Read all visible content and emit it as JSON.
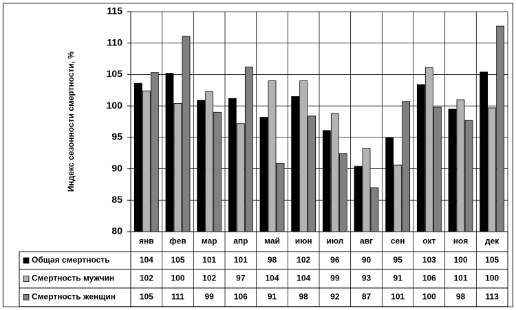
{
  "chart_data": {
    "type": "bar",
    "y_axis_label": "Индекс сезонности смертности, %",
    "categories": [
      "янв",
      "фев",
      "мар",
      "апр",
      "май",
      "июн",
      "июл",
      "авг",
      "сен",
      "окт",
      "ноя",
      "дек"
    ],
    "series": [
      {
        "name": "Общая смертность",
        "color": "#000000",
        "values": [
          103.6,
          105.2,
          100.9,
          101.2,
          98.2,
          101.5,
          96.1,
          90.4,
          95.0,
          103.4,
          99.5,
          105.4
        ],
        "value_labels": [
          "104",
          "105",
          "101",
          "101",
          "98",
          "102",
          "96",
          "90",
          "95",
          "103",
          "100",
          "105"
        ]
      },
      {
        "name": "Смертность мужчин",
        "color": "#b3b3b3",
        "values": [
          102.4,
          100.4,
          102.3,
          97.2,
          104.0,
          104.0,
          98.8,
          93.3,
          90.6,
          106.1,
          101.0,
          99.7
        ],
        "value_labels": [
          "102",
          "100",
          "102",
          "97",
          "104",
          "104",
          "99",
          "93",
          "91",
          "106",
          "101",
          "100"
        ]
      },
      {
        "name": "Смертность женщин",
        "color": "#808080",
        "values": [
          105.3,
          111.1,
          99.0,
          106.2,
          90.9,
          98.4,
          92.4,
          87.0,
          100.7,
          99.8,
          97.7,
          112.7
        ],
        "value_labels": [
          "105",
          "111",
          "99",
          "106",
          "91",
          "98",
          "92",
          "87",
          "101",
          "100",
          "98",
          "113"
        ]
      }
    ],
    "ylim": [
      80,
      115
    ],
    "yticks": [
      80,
      85,
      90,
      95,
      100,
      105,
      110,
      115
    ],
    "grid": true
  }
}
